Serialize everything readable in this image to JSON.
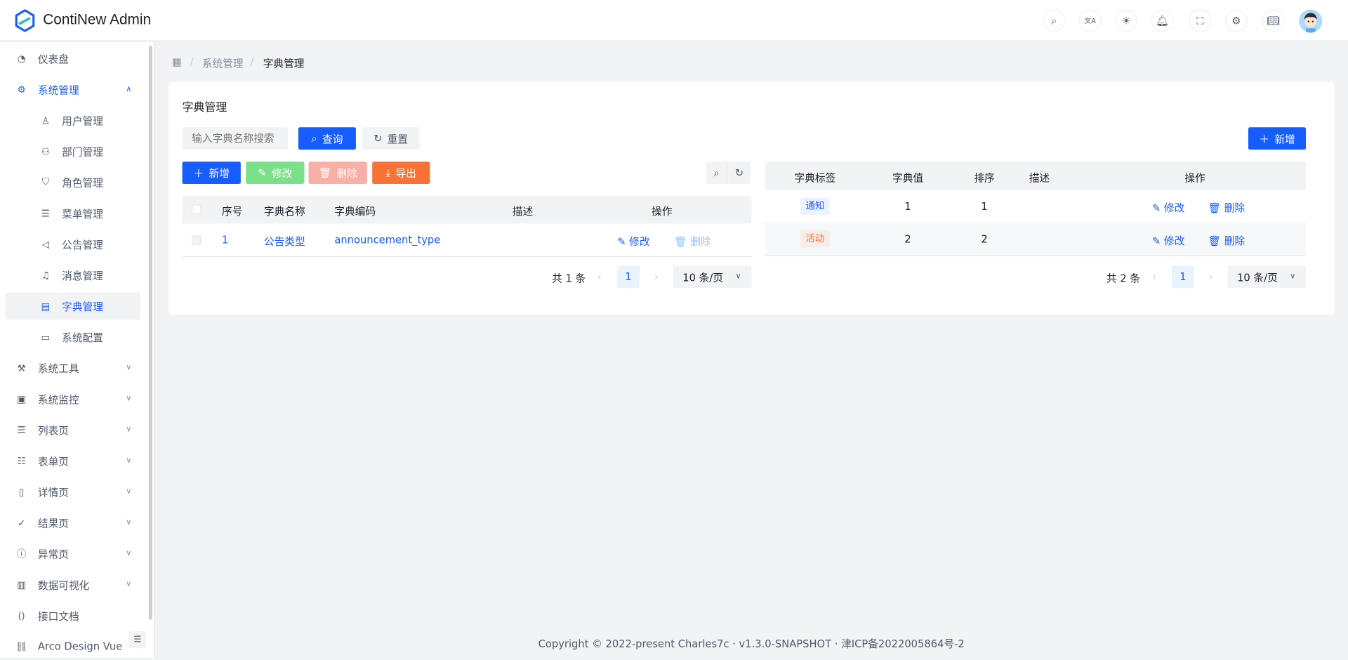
{
  "app": {
    "title": "ContiNew Admin"
  },
  "header_icons": [
    "search-icon",
    "translate-icon",
    "theme-sun-icon",
    "bell-icon",
    "fullscreen-icon",
    "settings-icon",
    "book-icon"
  ],
  "sidebar": {
    "items": [
      {
        "label": "仪表盘",
        "icon": "dashboard-icon"
      },
      {
        "label": "系统管理",
        "icon": "gear-icon",
        "expanded": true
      },
      {
        "label": "用户管理",
        "icon": "user-icon",
        "sub": true
      },
      {
        "label": "部门管理",
        "icon": "users-icon",
        "sub": true
      },
      {
        "label": "角色管理",
        "icon": "shield-icon",
        "sub": true
      },
      {
        "label": "菜单管理",
        "icon": "menu-icon",
        "sub": true
      },
      {
        "label": "公告管理",
        "icon": "megaphone-icon",
        "sub": true
      },
      {
        "label": "消息管理",
        "icon": "bell-icon",
        "sub": true
      },
      {
        "label": "字典管理",
        "icon": "dictionary-icon",
        "sub": true,
        "active": true
      },
      {
        "label": "系统配置",
        "icon": "desktop-icon",
        "sub": true
      },
      {
        "label": "系统工具",
        "icon": "wrench-icon",
        "chevron": true
      },
      {
        "label": "系统监控",
        "icon": "monitor-icon",
        "chevron": true
      },
      {
        "label": "列表页",
        "icon": "list-icon",
        "chevron": true
      },
      {
        "label": "表单页",
        "icon": "checklist-icon",
        "chevron": true
      },
      {
        "label": "详情页",
        "icon": "file-icon",
        "chevron": true
      },
      {
        "label": "结果页",
        "icon": "check-circle-icon",
        "chevron": true
      },
      {
        "label": "异常页",
        "icon": "exclamation-circle-icon",
        "chevron": true
      },
      {
        "label": "数据可视化",
        "icon": "bar-chart-icon",
        "chevron": true
      },
      {
        "label": "接口文档",
        "icon": "code-icon"
      },
      {
        "label": "Arco Design Vue",
        "icon": "link-icon"
      }
    ]
  },
  "breadcrumb": [
    "系统管理",
    "字典管理"
  ],
  "card": {
    "title": "字典管理"
  },
  "search": {
    "placeholder": "输入字典名称搜索",
    "query": "查询",
    "reset": "重置"
  },
  "toolbar": {
    "add": "新增",
    "edit": "修改",
    "delete": "删除",
    "export": "导出"
  },
  "left_table": {
    "headers": [
      "序号",
      "字典名称",
      "字典编码",
      "描述",
      "操作"
    ],
    "rows": [
      {
        "index": "1",
        "name": "公告类型",
        "code": "announcement_type",
        "description": "",
        "edit": "修改",
        "delete": "删除"
      }
    ],
    "pagination": {
      "total": "共 1 条",
      "page": "1",
      "page_size": "10 条/页"
    }
  },
  "right_table": {
    "add": "新增",
    "headers": [
      "字典标签",
      "字典值",
      "排序",
      "描述",
      "操作"
    ],
    "rows": [
      {
        "label": "通知",
        "label_color": "#165dff",
        "value": "1",
        "sort": "1",
        "description": "",
        "edit": "修改",
        "delete": "删除"
      },
      {
        "label": "活动",
        "label_color": "#f77234",
        "value": "2",
        "sort": "2",
        "description": "",
        "edit": "修改",
        "delete": "删除"
      }
    ],
    "pagination": {
      "total": "共 2 条",
      "page": "1",
      "page_size": "10 条/页"
    }
  },
  "footer": "Copyright © 2022-present Charles7c · v1.3.0-SNAPSHOT · 津ICP备2022005864号-2",
  "colors": {
    "primary": "#165dff",
    "success": "#7be188",
    "danger_light": "#f9aea6",
    "warning": "#f77234",
    "bg": "#f2f3f5"
  }
}
